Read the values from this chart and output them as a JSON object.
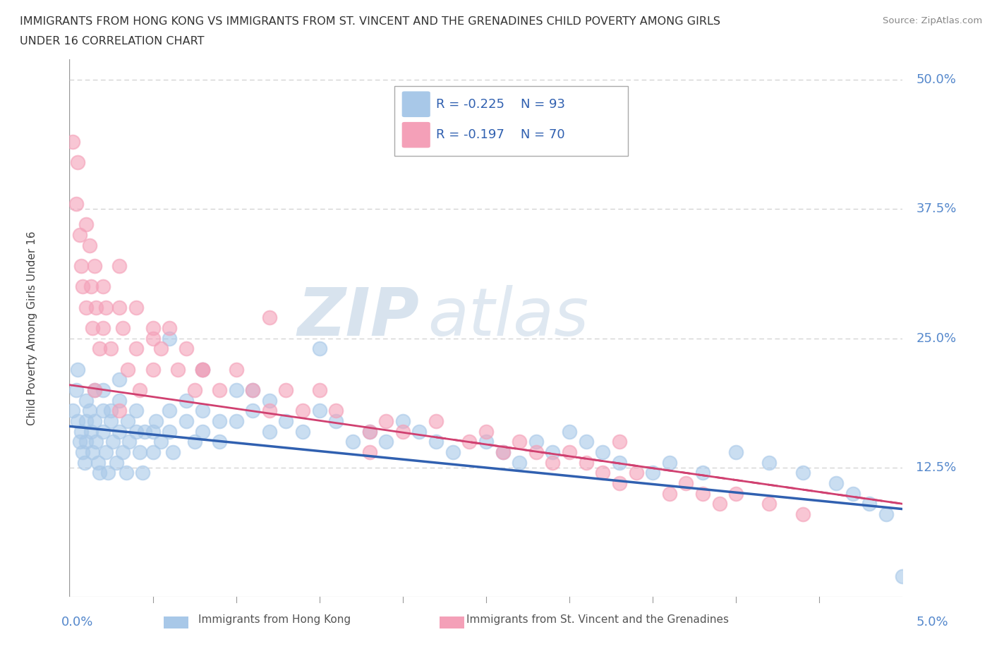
{
  "title_line1": "IMMIGRANTS FROM HONG KONG VS IMMIGRANTS FROM ST. VINCENT AND THE GRENADINES CHILD POVERTY AMONG GIRLS",
  "title_line2": "UNDER 16 CORRELATION CHART",
  "source_text": "Source: ZipAtlas.com",
  "legend_hk_label": "Immigrants from Hong Kong",
  "legend_sv_label": "Immigrants from St. Vincent and the Grenadines",
  "watermark_zip": "ZIP",
  "watermark_atlas": "atlas",
  "hk_color": "#a8c8e8",
  "sv_color": "#f4a0b8",
  "hk_line_color": "#3060b0",
  "sv_line_color": "#d04070",
  "background_color": "#ffffff",
  "xlim": [
    0.0,
    0.05
  ],
  "ylim": [
    0.0,
    0.52
  ],
  "hk_scatter_x": [
    0.0002,
    0.0004,
    0.0005,
    0.0006,
    0.0007,
    0.0008,
    0.0009,
    0.001,
    0.001,
    0.001,
    0.0012,
    0.0013,
    0.0014,
    0.0015,
    0.0016,
    0.0017,
    0.0018,
    0.002,
    0.002,
    0.002,
    0.0022,
    0.0023,
    0.0025,
    0.0026,
    0.0028,
    0.003,
    0.003,
    0.003,
    0.0032,
    0.0034,
    0.0036,
    0.004,
    0.004,
    0.0042,
    0.0044,
    0.005,
    0.005,
    0.0052,
    0.0055,
    0.006,
    0.006,
    0.0062,
    0.007,
    0.007,
    0.0075,
    0.008,
    0.008,
    0.009,
    0.009,
    0.01,
    0.01,
    0.011,
    0.012,
    0.012,
    0.013,
    0.014,
    0.015,
    0.016,
    0.017,
    0.018,
    0.019,
    0.02,
    0.021,
    0.022,
    0.023,
    0.025,
    0.026,
    0.027,
    0.028,
    0.029,
    0.03,
    0.031,
    0.032,
    0.033,
    0.035,
    0.036,
    0.038,
    0.04,
    0.042,
    0.044,
    0.046,
    0.047,
    0.048,
    0.049,
    0.05,
    0.0005,
    0.0015,
    0.0025,
    0.0035,
    0.0045,
    0.006,
    0.008,
    0.011,
    0.015
  ],
  "hk_scatter_y": [
    0.18,
    0.2,
    0.17,
    0.15,
    0.16,
    0.14,
    0.13,
    0.19,
    0.17,
    0.15,
    0.18,
    0.16,
    0.14,
    0.17,
    0.15,
    0.13,
    0.12,
    0.2,
    0.18,
    0.16,
    0.14,
    0.12,
    0.17,
    0.15,
    0.13,
    0.21,
    0.19,
    0.16,
    0.14,
    0.12,
    0.15,
    0.18,
    0.16,
    0.14,
    0.12,
    0.16,
    0.14,
    0.17,
    0.15,
    0.18,
    0.16,
    0.14,
    0.19,
    0.17,
    0.15,
    0.18,
    0.16,
    0.17,
    0.15,
    0.2,
    0.17,
    0.18,
    0.19,
    0.16,
    0.17,
    0.16,
    0.18,
    0.17,
    0.15,
    0.16,
    0.15,
    0.17,
    0.16,
    0.15,
    0.14,
    0.15,
    0.14,
    0.13,
    0.15,
    0.14,
    0.16,
    0.15,
    0.14,
    0.13,
    0.12,
    0.13,
    0.12,
    0.14,
    0.13,
    0.12,
    0.11,
    0.1,
    0.09,
    0.08,
    0.02,
    0.22,
    0.2,
    0.18,
    0.17,
    0.16,
    0.25,
    0.22,
    0.2,
    0.24
  ],
  "sv_scatter_x": [
    0.0002,
    0.0004,
    0.0005,
    0.0006,
    0.0007,
    0.0008,
    0.001,
    0.001,
    0.0012,
    0.0013,
    0.0014,
    0.0015,
    0.0016,
    0.0018,
    0.002,
    0.002,
    0.0022,
    0.0025,
    0.003,
    0.003,
    0.0032,
    0.0035,
    0.004,
    0.004,
    0.0042,
    0.005,
    0.005,
    0.0055,
    0.006,
    0.0065,
    0.007,
    0.0075,
    0.008,
    0.009,
    0.01,
    0.011,
    0.012,
    0.013,
    0.014,
    0.015,
    0.016,
    0.018,
    0.019,
    0.02,
    0.022,
    0.024,
    0.025,
    0.026,
    0.027,
    0.028,
    0.029,
    0.03,
    0.031,
    0.032,
    0.033,
    0.034,
    0.036,
    0.037,
    0.038,
    0.039,
    0.04,
    0.042,
    0.044,
    0.033,
    0.0015,
    0.003,
    0.005,
    0.008,
    0.012,
    0.018
  ],
  "sv_scatter_y": [
    0.44,
    0.38,
    0.42,
    0.35,
    0.32,
    0.3,
    0.36,
    0.28,
    0.34,
    0.3,
    0.26,
    0.32,
    0.28,
    0.24,
    0.3,
    0.26,
    0.28,
    0.24,
    0.32,
    0.28,
    0.26,
    0.22,
    0.28,
    0.24,
    0.2,
    0.26,
    0.22,
    0.24,
    0.26,
    0.22,
    0.24,
    0.2,
    0.22,
    0.2,
    0.22,
    0.2,
    0.18,
    0.2,
    0.18,
    0.2,
    0.18,
    0.16,
    0.17,
    0.16,
    0.17,
    0.15,
    0.16,
    0.14,
    0.15,
    0.14,
    0.13,
    0.14,
    0.13,
    0.12,
    0.11,
    0.12,
    0.1,
    0.11,
    0.1,
    0.09,
    0.1,
    0.09,
    0.08,
    0.15,
    0.2,
    0.18,
    0.25,
    0.22,
    0.27,
    0.14
  ]
}
